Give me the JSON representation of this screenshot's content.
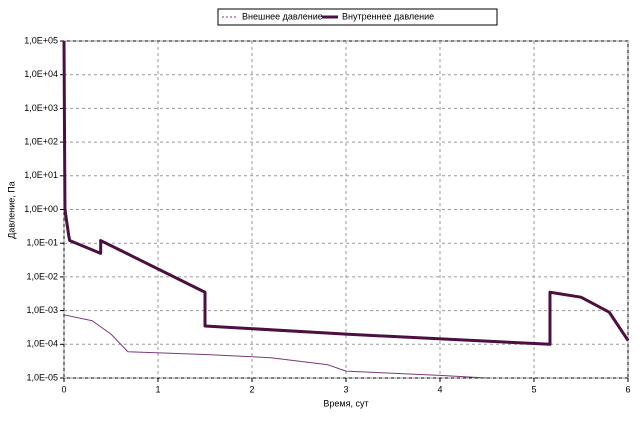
{
  "chart_data": {
    "type": "line",
    "xlabel": "Время, сут",
    "ylabel": "Давление, Па",
    "log_y": true,
    "grid": true,
    "xlim": [
      0,
      6
    ],
    "xticks": [
      0,
      1,
      2,
      3,
      4,
      5,
      6
    ],
    "ylim": [
      1e-05,
      100000
    ],
    "yticks": [
      {
        "value": 1e-05,
        "label": "1,0E-05"
      },
      {
        "value": 0.0001,
        "label": "1,0E-04"
      },
      {
        "value": 0.001,
        "label": "1,0E-03"
      },
      {
        "value": 0.01,
        "label": "1,0E-02"
      },
      {
        "value": 0.1,
        "label": "1,0E-01"
      },
      {
        "value": 1,
        "label": "1,0E+00"
      },
      {
        "value": 10,
        "label": "1,0E+01"
      },
      {
        "value": 100,
        "label": "1,0E+02"
      },
      {
        "value": 1000,
        "label": "1,0E+03"
      },
      {
        "value": 10000,
        "label": "1,0E+04"
      },
      {
        "value": 100000,
        "label": "1,0E+05"
      }
    ],
    "series": [
      {
        "name": "Внешнее давление",
        "color": "#7a3a7a",
        "line_width": 1,
        "x": [
          0,
          0.3,
          0.5,
          0.68,
          1.5,
          2.2,
          2.8,
          3.0,
          4.0,
          4.5
        ],
        "values": [
          0.00075,
          0.0005,
          0.0002,
          6e-05,
          5e-05,
          4e-05,
          2.5e-05,
          1.6e-05,
          1.2e-05,
          1e-05
        ]
      },
      {
        "name": "Внутреннее давление",
        "color": "#4b1040",
        "line_width": 3,
        "x": [
          0,
          0.01,
          0.05,
          0.06,
          0.39,
          0.39,
          1.5,
          1.5,
          3.0,
          5.17,
          5.17,
          5.5,
          5.8,
          6
        ],
        "values": [
          100000,
          1,
          0.17,
          0.12,
          0.05,
          0.12,
          0.0035,
          0.00035,
          0.0002,
          0.0001,
          0.0035,
          0.0025,
          0.0009,
          0.00013
        ]
      }
    ]
  }
}
